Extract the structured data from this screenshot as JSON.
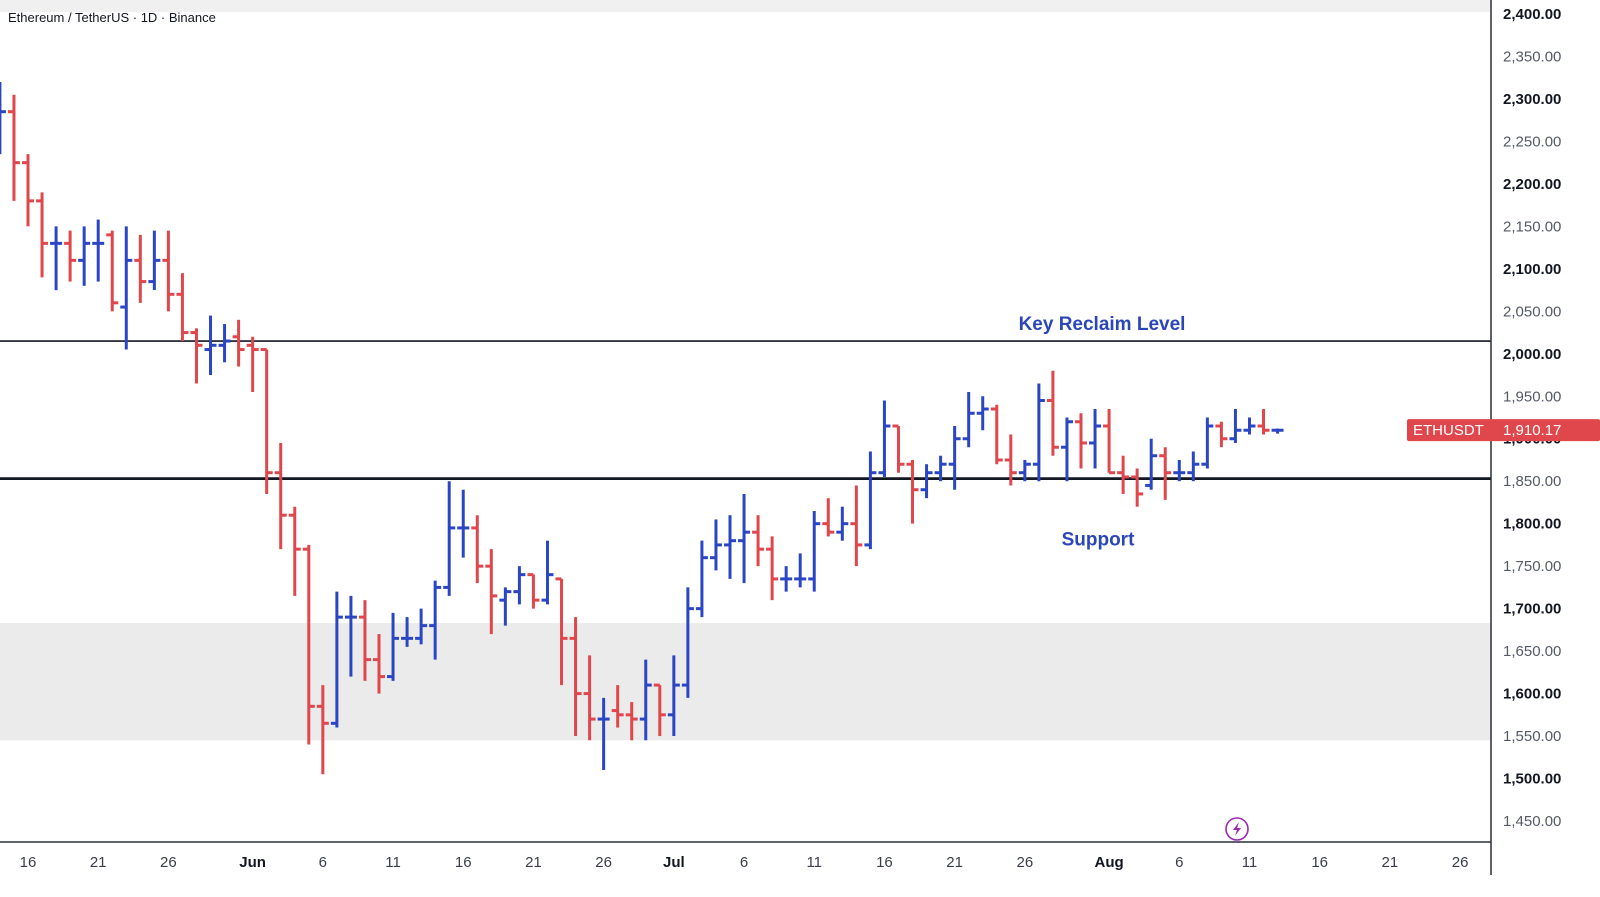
{
  "header": {
    "symbol_title": "Ethereum / TetherUS · 1D · Binance"
  },
  "price_tag": {
    "symbol": "ETHUSDT",
    "price": "1,910.17",
    "value": 1910.17
  },
  "annotations": [
    {
      "id": "key-reclaim",
      "text": "Key Reclaim Level",
      "level": 2015
    },
    {
      "id": "support",
      "text": "Support",
      "level": 1853
    }
  ],
  "zones": [
    {
      "from": 1545,
      "to": 1683
    }
  ],
  "colors": {
    "up": "#2b46c4",
    "down": "#e0474c",
    "zone": "#ebebeb",
    "tag": "#e0474c",
    "annotation": "#2b46b8"
  },
  "chart_data": {
    "type": "ohlc",
    "ylim": [
      1425,
      2415
    ],
    "yticks": [
      {
        "value": 2400,
        "label": "2,400.00",
        "bold": true
      },
      {
        "value": 2350,
        "label": "2,350.00",
        "bold": false
      },
      {
        "value": 2300,
        "label": "2,300.00",
        "bold": true
      },
      {
        "value": 2250,
        "label": "2,250.00",
        "bold": false
      },
      {
        "value": 2200,
        "label": "2,200.00",
        "bold": true
      },
      {
        "value": 2150,
        "label": "2,150.00",
        "bold": false
      },
      {
        "value": 2100,
        "label": "2,100.00",
        "bold": true
      },
      {
        "value": 2050,
        "label": "2,050.00",
        "bold": false
      },
      {
        "value": 2000,
        "label": "2,000.00",
        "bold": true
      },
      {
        "value": 1950,
        "label": "1,950.00",
        "bold": false
      },
      {
        "value": 1900,
        "label": "1,900.00",
        "bold": true
      },
      {
        "value": 1850,
        "label": "1,850.00",
        "bold": false
      },
      {
        "value": 1800,
        "label": "1,800.00",
        "bold": true
      },
      {
        "value": 1750,
        "label": "1,750.00",
        "bold": false
      },
      {
        "value": 1700,
        "label": "1,700.00",
        "bold": true
      },
      {
        "value": 1650,
        "label": "1,650.00",
        "bold": false
      },
      {
        "value": 1600,
        "label": "1,600.00",
        "bold": true
      },
      {
        "value": 1550,
        "label": "1,550.00",
        "bold": false
      },
      {
        "value": 1500,
        "label": "1,500.00",
        "bold": true
      },
      {
        "value": 1450,
        "label": "1,450.00",
        "bold": false
      }
    ],
    "xticks": [
      {
        "label": "16",
        "day": 0,
        "bold": false
      },
      {
        "label": "21",
        "day": 5,
        "bold": false
      },
      {
        "label": "26",
        "day": 10,
        "bold": false
      },
      {
        "label": "Jun",
        "day": 16,
        "bold": true
      },
      {
        "label": "6",
        "day": 21,
        "bold": false
      },
      {
        "label": "11",
        "day": 26,
        "bold": false
      },
      {
        "label": "16",
        "day": 31,
        "bold": false
      },
      {
        "label": "21",
        "day": 36,
        "bold": false
      },
      {
        "label": "26",
        "day": 41,
        "bold": false
      },
      {
        "label": "Jul",
        "day": 46,
        "bold": true
      },
      {
        "label": "6",
        "day": 51,
        "bold": false
      },
      {
        "label": "11",
        "day": 56,
        "bold": false
      },
      {
        "label": "16",
        "day": 61,
        "bold": false
      },
      {
        "label": "21",
        "day": 66,
        "bold": false
      },
      {
        "label": "26",
        "day": 71,
        "bold": false
      },
      {
        "label": "Aug",
        "day": 77,
        "bold": true
      },
      {
        "label": "6",
        "day": 82,
        "bold": false
      },
      {
        "label": "11",
        "day": 87,
        "bold": false
      },
      {
        "label": "16",
        "day": 92,
        "bold": false
      },
      {
        "label": "21",
        "day": 97,
        "bold": false
      },
      {
        "label": "26",
        "day": 102,
        "bold": false
      }
    ],
    "bars": [
      {
        "day": -2,
        "o": 2230,
        "h": 2320,
        "l": 2235,
        "c": 2285
      },
      {
        "day": -1,
        "o": 2285,
        "h": 2305,
        "l": 2180,
        "c": 2225
      },
      {
        "day": 0,
        "o": 2225,
        "h": 2235,
        "l": 2150,
        "c": 2180
      },
      {
        "day": 1,
        "o": 2180,
        "h": 2190,
        "l": 2090,
        "c": 2130
      },
      {
        "day": 2,
        "o": 2130,
        "h": 2150,
        "l": 2075,
        "c": 2130
      },
      {
        "day": 3,
        "o": 2130,
        "h": 2145,
        "l": 2085,
        "c": 2110
      },
      {
        "day": 4,
        "o": 2110,
        "h": 2150,
        "l": 2080,
        "c": 2130
      },
      {
        "day": 5,
        "o": 2130,
        "h": 2158,
        "l": 2085,
        "c": 2130
      },
      {
        "day": 6,
        "o": 2140,
        "h": 2145,
        "l": 2050,
        "c": 2060
      },
      {
        "day": 7,
        "o": 2055,
        "h": 2150,
        "l": 2005,
        "c": 2110
      },
      {
        "day": 8,
        "o": 2110,
        "h": 2140,
        "l": 2060,
        "c": 2085
      },
      {
        "day": 9,
        "o": 2085,
        "h": 2145,
        "l": 2075,
        "c": 2110
      },
      {
        "day": 10,
        "o": 2110,
        "h": 2145,
        "l": 2050,
        "c": 2070
      },
      {
        "day": 11,
        "o": 2070,
        "h": 2095,
        "l": 2015,
        "c": 2025
      },
      {
        "day": 12,
        "o": 2025,
        "h": 2030,
        "l": 1965,
        "c": 2010
      },
      {
        "day": 13,
        "o": 2005,
        "h": 2045,
        "l": 1975,
        "c": 2010
      },
      {
        "day": 14,
        "o": 2010,
        "h": 2035,
        "l": 1990,
        "c": 2015
      },
      {
        "day": 15,
        "o": 2020,
        "h": 2040,
        "l": 1985,
        "c": 2005
      },
      {
        "day": 16,
        "o": 2010,
        "h": 2020,
        "l": 1955,
        "c": 2005
      },
      {
        "day": 17,
        "o": 2005,
        "h": 2005,
        "l": 1835,
        "c": 1860
      },
      {
        "day": 18,
        "o": 1860,
        "h": 1895,
        "l": 1770,
        "c": 1810
      },
      {
        "day": 19,
        "o": 1810,
        "h": 1820,
        "l": 1715,
        "c": 1770
      },
      {
        "day": 20,
        "o": 1770,
        "h": 1775,
        "l": 1540,
        "c": 1585
      },
      {
        "day": 21,
        "o": 1585,
        "h": 1610,
        "l": 1505,
        "c": 1565
      },
      {
        "day": 22,
        "o": 1565,
        "h": 1720,
        "l": 1560,
        "c": 1690
      },
      {
        "day": 23,
        "o": 1690,
        "h": 1715,
        "l": 1620,
        "c": 1690
      },
      {
        "day": 24,
        "o": 1690,
        "h": 1710,
        "l": 1615,
        "c": 1640
      },
      {
        "day": 25,
        "o": 1640,
        "h": 1670,
        "l": 1600,
        "c": 1620
      },
      {
        "day": 26,
        "o": 1620,
        "h": 1695,
        "l": 1615,
        "c": 1665
      },
      {
        "day": 27,
        "o": 1665,
        "h": 1690,
        "l": 1655,
        "c": 1665
      },
      {
        "day": 28,
        "o": 1665,
        "h": 1700,
        "l": 1658,
        "c": 1680
      },
      {
        "day": 29,
        "o": 1680,
        "h": 1733,
        "l": 1640,
        "c": 1725
      },
      {
        "day": 30,
        "o": 1725,
        "h": 1850,
        "l": 1715,
        "c": 1795
      },
      {
        "day": 31,
        "o": 1795,
        "h": 1840,
        "l": 1760,
        "c": 1795
      },
      {
        "day": 32,
        "o": 1795,
        "h": 1810,
        "l": 1730,
        "c": 1750
      },
      {
        "day": 33,
        "o": 1750,
        "h": 1770,
        "l": 1670,
        "c": 1715
      },
      {
        "day": 34,
        "o": 1710,
        "h": 1725,
        "l": 1680,
        "c": 1720
      },
      {
        "day": 35,
        "o": 1720,
        "h": 1750,
        "l": 1705,
        "c": 1740
      },
      {
        "day": 36,
        "o": 1740,
        "h": 1740,
        "l": 1700,
        "c": 1710
      },
      {
        "day": 37,
        "o": 1710,
        "h": 1780,
        "l": 1705,
        "c": 1740
      },
      {
        "day": 38,
        "o": 1735,
        "h": 1735,
        "l": 1610,
        "c": 1665
      },
      {
        "day": 39,
        "o": 1665,
        "h": 1690,
        "l": 1550,
        "c": 1600
      },
      {
        "day": 40,
        "o": 1600,
        "h": 1645,
        "l": 1545,
        "c": 1570
      },
      {
        "day": 41,
        "o": 1570,
        "h": 1595,
        "l": 1510,
        "c": 1570
      },
      {
        "day": 42,
        "o": 1580,
        "h": 1610,
        "l": 1560,
        "c": 1575
      },
      {
        "day": 43,
        "o": 1575,
        "h": 1590,
        "l": 1545,
        "c": 1570
      },
      {
        "day": 44,
        "o": 1570,
        "h": 1640,
        "l": 1545,
        "c": 1610
      },
      {
        "day": 45,
        "o": 1610,
        "h": 1610,
        "l": 1550,
        "c": 1575
      },
      {
        "day": 46,
        "o": 1575,
        "h": 1645,
        "l": 1550,
        "c": 1610
      },
      {
        "day": 47,
        "o": 1610,
        "h": 1725,
        "l": 1595,
        "c": 1700
      },
      {
        "day": 48,
        "o": 1700,
        "h": 1780,
        "l": 1690,
        "c": 1760
      },
      {
        "day": 49,
        "o": 1760,
        "h": 1805,
        "l": 1745,
        "c": 1775
      },
      {
        "day": 50,
        "o": 1775,
        "h": 1810,
        "l": 1735,
        "c": 1780
      },
      {
        "day": 51,
        "o": 1780,
        "h": 1835,
        "l": 1730,
        "c": 1790
      },
      {
        "day": 52,
        "o": 1790,
        "h": 1810,
        "l": 1750,
        "c": 1770
      },
      {
        "day": 53,
        "o": 1770,
        "h": 1785,
        "l": 1710,
        "c": 1735
      },
      {
        "day": 54,
        "o": 1735,
        "h": 1750,
        "l": 1720,
        "c": 1735
      },
      {
        "day": 55,
        "o": 1735,
        "h": 1765,
        "l": 1725,
        "c": 1735
      },
      {
        "day": 56,
        "o": 1735,
        "h": 1815,
        "l": 1720,
        "c": 1800
      },
      {
        "day": 57,
        "o": 1800,
        "h": 1830,
        "l": 1785,
        "c": 1790
      },
      {
        "day": 58,
        "o": 1790,
        "h": 1820,
        "l": 1780,
        "c": 1800
      },
      {
        "day": 59,
        "o": 1800,
        "h": 1845,
        "l": 1750,
        "c": 1775
      },
      {
        "day": 60,
        "o": 1775,
        "h": 1885,
        "l": 1770,
        "c": 1860
      },
      {
        "day": 61,
        "o": 1860,
        "h": 1945,
        "l": 1855,
        "c": 1915
      },
      {
        "day": 62,
        "o": 1915,
        "h": 1915,
        "l": 1860,
        "c": 1870
      },
      {
        "day": 63,
        "o": 1870,
        "h": 1875,
        "l": 1800,
        "c": 1840
      },
      {
        "day": 64,
        "o": 1840,
        "h": 1870,
        "l": 1830,
        "c": 1860
      },
      {
        "day": 65,
        "o": 1860,
        "h": 1880,
        "l": 1850,
        "c": 1870
      },
      {
        "day": 66,
        "o": 1870,
        "h": 1915,
        "l": 1840,
        "c": 1900
      },
      {
        "day": 67,
        "o": 1900,
        "h": 1955,
        "l": 1890,
        "c": 1930
      },
      {
        "day": 68,
        "o": 1930,
        "h": 1950,
        "l": 1910,
        "c": 1935
      },
      {
        "day": 69,
        "o": 1935,
        "h": 1940,
        "l": 1870,
        "c": 1875
      },
      {
        "day": 70,
        "o": 1875,
        "h": 1905,
        "l": 1845,
        "c": 1860
      },
      {
        "day": 71,
        "o": 1860,
        "h": 1875,
        "l": 1850,
        "c": 1870
      },
      {
        "day": 72,
        "o": 1870,
        "h": 1965,
        "l": 1850,
        "c": 1945
      },
      {
        "day": 73,
        "o": 1945,
        "h": 1980,
        "l": 1880,
        "c": 1890
      },
      {
        "day": 74,
        "o": 1890,
        "h": 1925,
        "l": 1850,
        "c": 1920
      },
      {
        "day": 75,
        "o": 1920,
        "h": 1930,
        "l": 1865,
        "c": 1895
      },
      {
        "day": 76,
        "o": 1895,
        "h": 1935,
        "l": 1865,
        "c": 1915
      },
      {
        "day": 77,
        "o": 1915,
        "h": 1935,
        "l": 1860,
        "c": 1860
      },
      {
        "day": 78,
        "o": 1860,
        "h": 1880,
        "l": 1835,
        "c": 1855
      },
      {
        "day": 79,
        "o": 1855,
        "h": 1865,
        "l": 1820,
        "c": 1835
      },
      {
        "day": 80,
        "o": 1845,
        "h": 1900,
        "l": 1840,
        "c": 1880
      },
      {
        "day": 81,
        "o": 1880,
        "h": 1890,
        "l": 1828,
        "c": 1860
      },
      {
        "day": 82,
        "o": 1860,
        "h": 1875,
        "l": 1850,
        "c": 1860
      },
      {
        "day": 83,
        "o": 1860,
        "h": 1885,
        "l": 1850,
        "c": 1870
      },
      {
        "day": 84,
        "o": 1870,
        "h": 1925,
        "l": 1865,
        "c": 1915
      },
      {
        "day": 85,
        "o": 1915,
        "h": 1920,
        "l": 1890,
        "c": 1900
      },
      {
        "day": 86,
        "o": 1900,
        "h": 1935,
        "l": 1895,
        "c": 1910
      },
      {
        "day": 87,
        "o": 1910,
        "h": 1925,
        "l": 1905,
        "c": 1915
      },
      {
        "day": 88,
        "o": 1915,
        "h": 1935,
        "l": 1905,
        "c": 1910
      },
      {
        "day": 89,
        "o": 1910,
        "h": 1912,
        "l": 1906,
        "c": 1910
      }
    ]
  }
}
